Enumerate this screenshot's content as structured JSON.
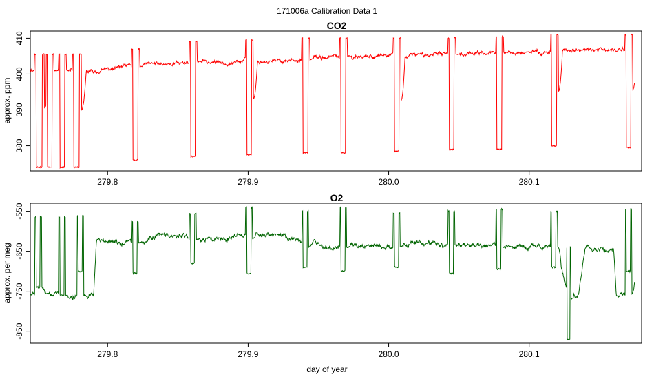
{
  "figure": {
    "title": "171006a   Calibration Data 1",
    "xlabel": "day of year"
  },
  "chart_data": [
    {
      "type": "line",
      "title": "CO2",
      "ylabel": "approx. ppm",
      "xlim": [
        279.745,
        280.18
      ],
      "ylim": [
        373,
        412
      ],
      "xticks": [
        279.8,
        279.9,
        280.0,
        280.1
      ],
      "xtick_labels": [
        "279.8",
        "279.9",
        "280.0",
        "280.1"
      ],
      "yticks": [
        380,
        390,
        400,
        410
      ],
      "ytick_labels": [
        "380",
        "390",
        "400",
        "410"
      ],
      "color": "#ff0000",
      "baseline": [
        [
          279.745,
          401.2
        ],
        [
          279.78,
          401.0
        ],
        [
          279.79,
          400.5
        ],
        [
          279.81,
          402.0
        ],
        [
          279.83,
          402.8
        ],
        [
          279.85,
          403.0
        ],
        [
          279.86,
          403.6
        ],
        [
          279.88,
          403.2
        ],
        [
          279.9,
          403.8
        ],
        [
          279.92,
          403.5
        ],
        [
          279.94,
          404.2
        ],
        [
          279.96,
          404.8
        ],
        [
          279.98,
          405.0
        ],
        [
          280.0,
          405.2
        ],
        [
          280.03,
          405.4
        ],
        [
          280.05,
          405.6
        ],
        [
          280.08,
          406.0
        ],
        [
          280.1,
          406.0
        ],
        [
          280.12,
          406.4
        ],
        [
          280.15,
          406.8
        ],
        [
          280.175,
          406.8
        ]
      ],
      "features": [
        {
          "kind": "drop",
          "x": 279.749,
          "w": 0.0045,
          "low": 374.0,
          "spike": 405.5,
          "after": 390.5
        },
        {
          "kind": "drop",
          "x": 279.757,
          "w": 0.0035,
          "low": 374.0,
          "spike": 405.5,
          "after": 401.0
        },
        {
          "kind": "drop",
          "x": 279.766,
          "w": 0.0035,
          "low": 374.0,
          "spike": 405.5,
          "after": 401.0
        },
        {
          "kind": "drop",
          "x": 279.776,
          "w": 0.004,
          "low": 374.0,
          "spike": 405.5,
          "after": 390.0
        },
        {
          "kind": "drop",
          "x": 279.818,
          "w": 0.0035,
          "low": 376.0,
          "spike": 407.0,
          "after": 402.0
        },
        {
          "kind": "drop",
          "x": 279.859,
          "w": 0.0035,
          "low": 377.0,
          "spike": 409.0,
          "after": 403.5
        },
        {
          "kind": "drop",
          "x": 279.899,
          "w": 0.0035,
          "low": 377.5,
          "spike": 409.5,
          "after": 393.0
        },
        {
          "kind": "drop",
          "x": 279.939,
          "w": 0.0035,
          "low": 378.0,
          "spike": 410.0,
          "after": 404.0
        },
        {
          "kind": "drop",
          "x": 279.966,
          "w": 0.0035,
          "low": 378.0,
          "spike": 410.0,
          "after": 405.0
        },
        {
          "kind": "drop",
          "x": 280.004,
          "w": 0.0035,
          "low": 378.5,
          "spike": 410.0,
          "after": 392.5
        },
        {
          "kind": "drop",
          "x": 280.043,
          "w": 0.0035,
          "low": 379.0,
          "spike": 410.0,
          "after": 405.5
        },
        {
          "kind": "drop",
          "x": 280.077,
          "w": 0.0035,
          "low": 379.0,
          "spike": 410.5,
          "after": 406.0
        },
        {
          "kind": "drop",
          "x": 280.116,
          "w": 0.0035,
          "low": 380.0,
          "spike": 411.0,
          "after": 395.0
        },
        {
          "kind": "drop",
          "x": 280.169,
          "w": 0.0035,
          "low": 379.5,
          "spike": 411.0,
          "after": 395.5
        }
      ]
    },
    {
      "type": "line",
      "title": "O2",
      "ylabel": "approx. per meg",
      "xlim": [
        279.745,
        280.18
      ],
      "ylim": [
        -880,
        -530
      ],
      "xticks": [
        279.8,
        279.9,
        280.0,
        280.1
      ],
      "xtick_labels": [
        "279.8",
        "279.9",
        "280.0",
        "280.1"
      ],
      "yticks": [
        -850,
        -750,
        -650,
        -550
      ],
      "ytick_labels": [
        "-850",
        "-750",
        "-650",
        "-550"
      ],
      "color": "#006400",
      "baseline": [
        [
          279.745,
          -760
        ],
        [
          279.76,
          -755
        ],
        [
          279.775,
          -770
        ],
        [
          279.79,
          -760
        ],
        [
          279.792,
          -625
        ],
        [
          279.81,
          -630
        ],
        [
          279.825,
          -625
        ],
        [
          279.84,
          -605
        ],
        [
          279.86,
          -620
        ],
        [
          279.88,
          -615
        ],
        [
          279.9,
          -605
        ],
        [
          279.92,
          -610
        ],
        [
          279.94,
          -625
        ],
        [
          279.96,
          -640
        ],
        [
          279.98,
          -635
        ],
        [
          280.0,
          -640
        ],
        [
          280.02,
          -630
        ],
        [
          280.04,
          -635
        ],
        [
          280.06,
          -635
        ],
        [
          280.08,
          -640
        ],
        [
          280.1,
          -640
        ],
        [
          280.12,
          -640
        ],
        [
          280.128,
          -770
        ],
        [
          280.135,
          -760
        ],
        [
          280.14,
          -640
        ],
        [
          280.16,
          -645
        ],
        [
          280.162,
          -760
        ],
        [
          280.17,
          -755
        ],
        [
          280.175,
          -710
        ]
      ],
      "features": [
        {
          "kind": "rise",
          "x": 279.749,
          "w": 0.003,
          "low": -740,
          "spike": -565,
          "after": -740
        },
        {
          "kind": "rise",
          "x": 279.766,
          "w": 0.003,
          "low": -760,
          "spike": -565,
          "after": -760
        },
        {
          "kind": "rise",
          "x": 279.779,
          "w": 0.003,
          "low": -700,
          "spike": -560,
          "after": -760
        },
        {
          "kind": "rise",
          "x": 279.818,
          "w": 0.003,
          "low": -705,
          "spike": -575,
          "after": -628
        },
        {
          "kind": "rise",
          "x": 279.859,
          "w": 0.003,
          "low": -680,
          "spike": -555,
          "after": -620
        },
        {
          "kind": "rise",
          "x": 279.899,
          "w": 0.003,
          "low": -705,
          "spike": -540,
          "after": -620
        },
        {
          "kind": "rise",
          "x": 279.939,
          "w": 0.003,
          "low": -690,
          "spike": -550,
          "after": -640
        },
        {
          "kind": "rise",
          "x": 279.966,
          "w": 0.003,
          "low": -700,
          "spike": -540,
          "after": -640
        },
        {
          "kind": "rise",
          "x": 280.004,
          "w": 0.003,
          "low": -690,
          "spike": -555,
          "after": -640
        },
        {
          "kind": "rise",
          "x": 280.043,
          "w": 0.003,
          "low": -705,
          "spike": -550,
          "after": -635
        },
        {
          "kind": "rise",
          "x": 280.077,
          "w": 0.003,
          "low": -695,
          "spike": -545,
          "after": -640
        },
        {
          "kind": "rise",
          "x": 280.116,
          "w": 0.003,
          "low": -690,
          "spike": -550,
          "after": -640
        },
        {
          "kind": "rise",
          "x": 280.169,
          "w": 0.003,
          "low": -700,
          "spike": -545,
          "after": -755
        },
        {
          "kind": "dip",
          "x": 280.127,
          "w": 0.002,
          "low": -870,
          "spike": -640,
          "after": -770
        }
      ]
    }
  ]
}
